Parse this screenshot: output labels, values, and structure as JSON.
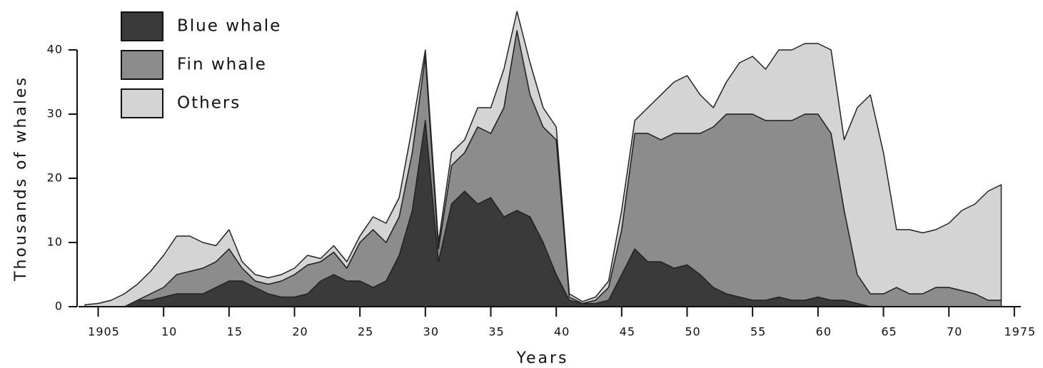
{
  "chart_data": {
    "type": "stacked_area",
    "ylabel": "Thousands of whales",
    "xlabel": "Years",
    "x": [
      1904,
      1905,
      1906,
      1907,
      1908,
      1909,
      1910,
      1911,
      1912,
      1913,
      1914,
      1915,
      1916,
      1917,
      1918,
      1919,
      1920,
      1921,
      1922,
      1923,
      1924,
      1925,
      1926,
      1927,
      1928,
      1929,
      1930,
      1931,
      1932,
      1933,
      1934,
      1935,
      1936,
      1937,
      1938,
      1939,
      1940,
      1941,
      1942,
      1943,
      1944,
      1945,
      1946,
      1947,
      1948,
      1949,
      1950,
      1951,
      1952,
      1953,
      1954,
      1955,
      1956,
      1957,
      1958,
      1959,
      1960,
      1961,
      1962,
      1963,
      1964,
      1965,
      1966,
      1967,
      1968,
      1969,
      1970,
      1971,
      1972,
      1973,
      1974
    ],
    "series": [
      {
        "name": "Blue whale",
        "color": "#3a3a3a",
        "values": [
          0,
          0,
          0,
          0,
          1,
          1,
          1.5,
          2,
          2,
          2,
          3,
          4,
          4,
          3,
          2,
          1.5,
          1.5,
          2,
          4,
          5,
          4,
          4,
          3,
          4,
          8,
          15,
          29,
          7,
          16,
          18,
          16,
          17,
          14,
          15,
          14,
          10,
          5,
          1,
          0.5,
          0.5,
          1,
          5,
          9,
          7,
          7,
          6,
          6.5,
          5,
          3,
          2,
          1.5,
          1,
          1,
          1.5,
          1,
          1,
          1.5,
          1,
          1,
          0.5,
          0,
          0,
          0,
          0,
          0,
          0,
          0,
          0,
          0,
          0,
          0
        ]
      },
      {
        "name": "Fin whale",
        "color": "#8c8c8c",
        "values": [
          0,
          0,
          0,
          0,
          0,
          1,
          1.5,
          3,
          3.5,
          4,
          4,
          5,
          2,
          1,
          1.5,
          2.5,
          3.5,
          4.5,
          3,
          3.5,
          2,
          6,
          9,
          6,
          6,
          9,
          10,
          2,
          6,
          6,
          12,
          10,
          17,
          28,
          19,
          18,
          21,
          0.5,
          0,
          0.5,
          2,
          7,
          18,
          20,
          19,
          21,
          20.5,
          22,
          25,
          28,
          28.5,
          29,
          28,
          27.5,
          28,
          29,
          28.5,
          26,
          14,
          4.5,
          2,
          2,
          3,
          2,
          2,
          3,
          3,
          2.5,
          2,
          1,
          1
        ]
      },
      {
        "name": "Others",
        "color": "#d4d4d4",
        "values": [
          0.3,
          0.5,
          1,
          2,
          2.5,
          3.5,
          5,
          6,
          5.5,
          4,
          2.5,
          3,
          1,
          1,
          1,
          1,
          1,
          1.5,
          0.5,
          1,
          1,
          1,
          2,
          3,
          3,
          4,
          1,
          1,
          2,
          2,
          3,
          4,
          6,
          3,
          5,
          3,
          2,
          0.5,
          0.3,
          0.5,
          1,
          3,
          2,
          4,
          7,
          8,
          9,
          6,
          3,
          5,
          8,
          9,
          8,
          11,
          11,
          11,
          11,
          13,
          11,
          26,
          31,
          22,
          9,
          10,
          9.5,
          9,
          10,
          12.5,
          14,
          17,
          18
        ]
      }
    ],
    "xlim": [
      1903.5,
      1975.5
    ],
    "xticks": [
      1905,
      {
        "value": 1910,
        "label": "10"
      },
      {
        "value": 1915,
        "label": "15"
      },
      {
        "value": 1920,
        "label": "20"
      },
      {
        "value": 1925,
        "label": "25"
      },
      {
        "value": 1930,
        "label": "30"
      },
      {
        "value": 1935,
        "label": "35"
      },
      {
        "value": 1940,
        "label": "40"
      },
      {
        "value": 1945,
        "label": "45"
      },
      {
        "value": 1950,
        "label": "50"
      },
      {
        "value": 1955,
        "label": "55"
      },
      {
        "value": 1960,
        "label": "60"
      },
      {
        "value": 1965,
        "label": "65"
      },
      {
        "value": 1970,
        "label": "70"
      },
      1975
    ],
    "ylim": [
      0,
      47
    ],
    "yticks": [
      0,
      10,
      20,
      30,
      40
    ],
    "legend": "upper left"
  }
}
